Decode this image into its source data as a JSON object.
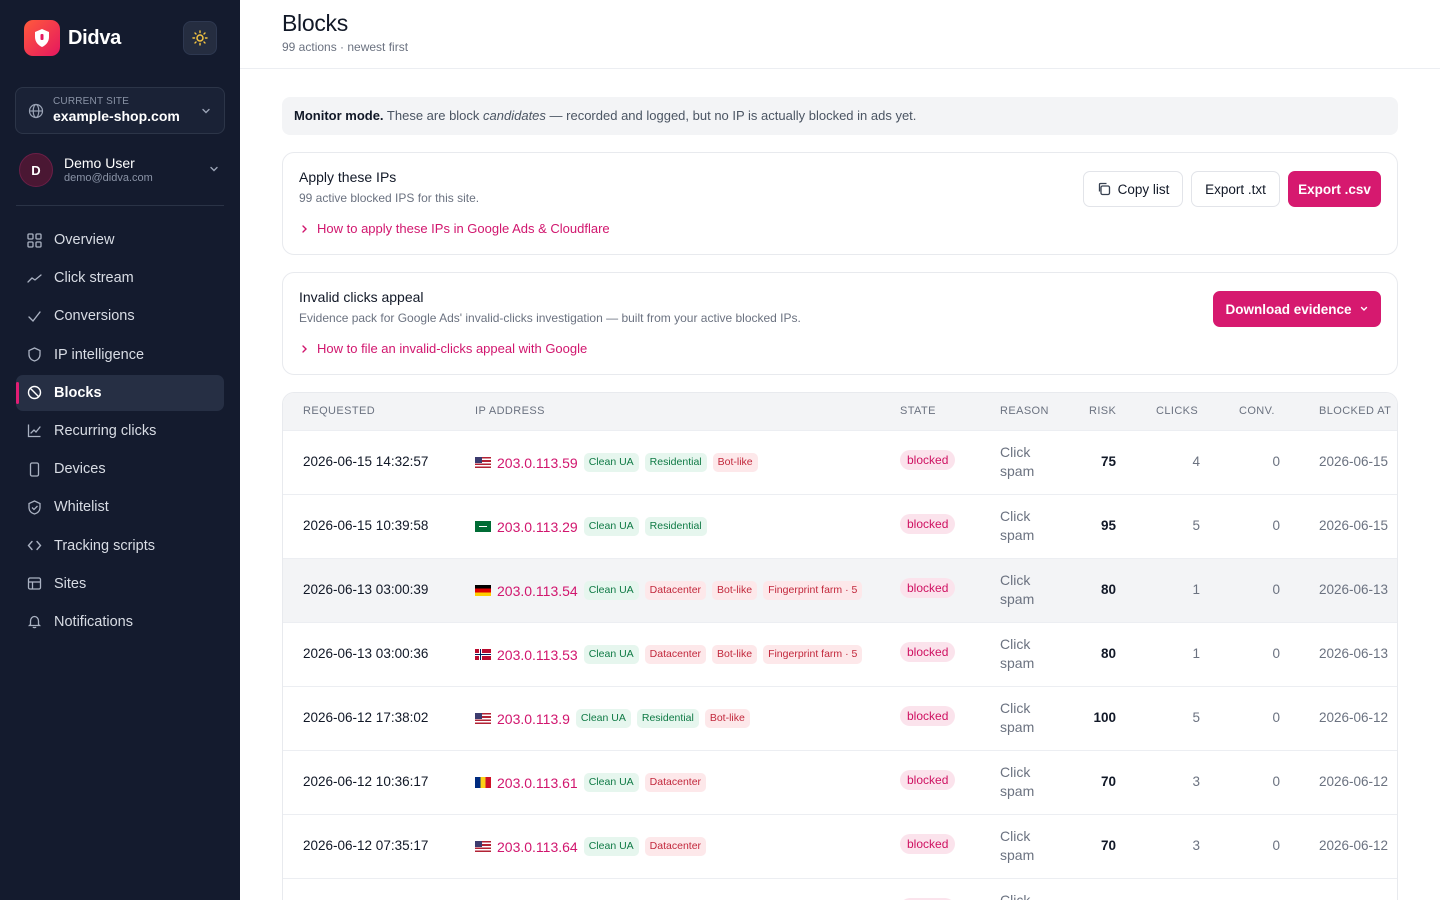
{
  "brand": {
    "name": "Didva"
  },
  "site_selector": {
    "label": "CURRENT SITE",
    "value": "example-shop.com"
  },
  "user": {
    "initial": "D",
    "name": "Demo User",
    "email": "demo@didva.com"
  },
  "nav": [
    {
      "label": "Overview",
      "icon": "grid-icon"
    },
    {
      "label": "Click stream",
      "icon": "trend-icon"
    },
    {
      "label": "Conversions",
      "icon": "check-icon"
    },
    {
      "label": "IP intelligence",
      "icon": "shield-icon"
    },
    {
      "label": "Blocks",
      "icon": "ban-icon",
      "active": true
    },
    {
      "label": "Recurring clicks",
      "icon": "chart-icon"
    },
    {
      "label": "Devices",
      "icon": "phone-icon"
    },
    {
      "label": "Whitelist",
      "icon": "shield-check-icon"
    },
    {
      "label": "Tracking scripts",
      "icon": "code-icon"
    },
    {
      "label": "Sites",
      "icon": "table-icon"
    },
    {
      "label": "Notifications",
      "icon": "bell-icon"
    }
  ],
  "header": {
    "title": "Blocks",
    "subtitle": "99 actions · newest first"
  },
  "banner": {
    "bold": "Monitor mode.",
    "text_before": " These are block ",
    "italic": "candidates",
    "text_after": " — recorded and logged, but no IP is actually blocked in ads yet."
  },
  "apply_card": {
    "title": "Apply these IPs",
    "desc": "99 active blocked IPS for this site.",
    "link": "How to apply these IPs in Google Ads & Cloudflare",
    "copy_label": "Copy list",
    "export_txt_label": "Export .txt",
    "export_csv_label": "Export .csv"
  },
  "appeal_card": {
    "title": "Invalid clicks appeal",
    "desc": "Evidence pack for Google Ads' invalid-clicks investigation — built from your active blocked IPs.",
    "link": "How to file an invalid-clicks appeal with Google",
    "download_label": "Download evidence"
  },
  "table": {
    "headers": [
      "REQUESTED",
      "IP ADDRESS",
      "STATE",
      "REASON",
      "RISK",
      "CLICKS",
      "CONV.",
      "BLOCKED AT"
    ],
    "rows": [
      {
        "requested": "2026-06-15 14:32:57",
        "flag": "us",
        "ip": "203.0.113.59",
        "tags": [
          [
            "Clean UA",
            "green"
          ],
          [
            "Residential",
            "green"
          ],
          [
            "Bot-like",
            "red"
          ]
        ],
        "state": "blocked",
        "reason": "Click spam",
        "risk": "75",
        "clicks": "4",
        "conv": "0",
        "blocked_at": "2026-06-15"
      },
      {
        "requested": "2026-06-15 10:39:58",
        "flag": "sa",
        "ip": "203.0.113.29",
        "tags": [
          [
            "Clean UA",
            "green"
          ],
          [
            "Residential",
            "green"
          ]
        ],
        "state": "blocked",
        "reason": "Click spam",
        "risk": "95",
        "clicks": "5",
        "conv": "0",
        "blocked_at": "2026-06-15"
      },
      {
        "requested": "2026-06-13 03:00:39",
        "flag": "de",
        "ip": "203.0.113.54",
        "tags": [
          [
            "Clean UA",
            "green"
          ],
          [
            "Datacenter",
            "red"
          ],
          [
            "Bot-like",
            "red"
          ],
          [
            "Fingerprint farm · 5",
            "red"
          ]
        ],
        "state": "blocked",
        "reason": "Click spam",
        "risk": "80",
        "clicks": "1",
        "conv": "0",
        "blocked_at": "2026-06-13",
        "highlight": true
      },
      {
        "requested": "2026-06-13 03:00:36",
        "flag": "no",
        "ip": "203.0.113.53",
        "tags": [
          [
            "Clean UA",
            "green"
          ],
          [
            "Datacenter",
            "red"
          ],
          [
            "Bot-like",
            "red"
          ],
          [
            "Fingerprint farm · 5",
            "red"
          ]
        ],
        "state": "blocked",
        "reason": "Click spam",
        "risk": "80",
        "clicks": "1",
        "conv": "0",
        "blocked_at": "2026-06-13"
      },
      {
        "requested": "2026-06-12 17:38:02",
        "flag": "us",
        "ip": "203.0.113.9",
        "tags": [
          [
            "Clean UA",
            "green"
          ],
          [
            "Residential",
            "green"
          ],
          [
            "Bot-like",
            "red"
          ]
        ],
        "state": "blocked",
        "reason": "Click spam",
        "risk": "100",
        "clicks": "5",
        "conv": "0",
        "blocked_at": "2026-06-12"
      },
      {
        "requested": "2026-06-12 10:36:17",
        "flag": "ro",
        "ip": "203.0.113.61",
        "tags": [
          [
            "Clean UA",
            "green"
          ],
          [
            "Datacenter",
            "red"
          ]
        ],
        "state": "blocked",
        "reason": "Click spam",
        "risk": "70",
        "clicks": "3",
        "conv": "0",
        "blocked_at": "2026-06-12"
      },
      {
        "requested": "2026-06-12 07:35:17",
        "flag": "us",
        "ip": "203.0.113.64",
        "tags": [
          [
            "Clean UA",
            "green"
          ],
          [
            "Datacenter",
            "red"
          ]
        ],
        "state": "blocked",
        "reason": "Click spam",
        "risk": "70",
        "clicks": "3",
        "conv": "0",
        "blocked_at": "2026-06-12"
      },
      {
        "requested": "",
        "flag": "",
        "ip": "",
        "tags": [],
        "state": "blocked",
        "reason": "Click spam",
        "risk": "",
        "clicks": "",
        "conv": "",
        "blocked_at": ""
      }
    ]
  },
  "colors": {
    "accent": "#d6196f",
    "sidebar_bg": "#141b2e"
  }
}
